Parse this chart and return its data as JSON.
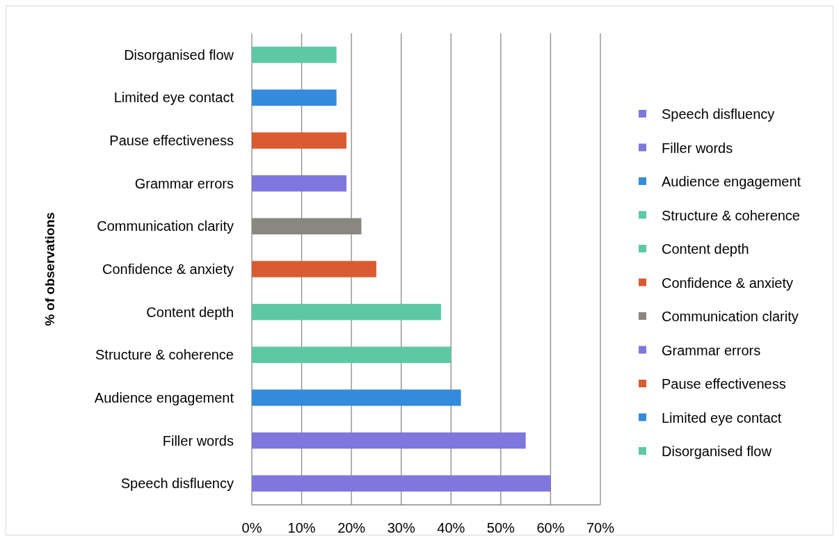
{
  "chart_data": {
    "type": "bar",
    "orientation": "horizontal",
    "ylabel": "% of observations",
    "categories": [
      "Disorganised flow",
      "Limited eye contact",
      "Pause effectiveness",
      "Grammar errors",
      "Communication clarity",
      "Confidence & anxiety",
      "Content depth",
      "Structure & coherence",
      "Audience engagement",
      "Filler words",
      "Speech disfluency"
    ],
    "series": [
      {
        "name": "Speech disfluency",
        "color": "#7f77dd",
        "values": [
          null,
          null,
          null,
          null,
          null,
          null,
          null,
          null,
          null,
          null,
          60
        ]
      },
      {
        "name": "Filler words",
        "color": "#7f77dd",
        "values": [
          null,
          null,
          null,
          null,
          null,
          null,
          null,
          null,
          null,
          55,
          null
        ]
      },
      {
        "name": "Audience engagement",
        "color": "#358bdb",
        "values": [
          null,
          null,
          null,
          null,
          null,
          null,
          null,
          null,
          42,
          null,
          null
        ]
      },
      {
        "name": "Structure & coherence",
        "color": "#5cc9a4",
        "values": [
          null,
          null,
          null,
          null,
          null,
          null,
          null,
          40,
          null,
          null,
          null
        ]
      },
      {
        "name": "Content depth",
        "color": "#5cc9a4",
        "values": [
          null,
          null,
          null,
          null,
          null,
          null,
          38,
          null,
          null,
          null,
          null
        ]
      },
      {
        "name": "Confidence & anxiety",
        "color": "#d95b31",
        "values": [
          null,
          null,
          null,
          null,
          null,
          25,
          null,
          null,
          null,
          null,
          null
        ]
      },
      {
        "name": "Communication clarity",
        "color": "#888780",
        "values": [
          null,
          null,
          null,
          null,
          22,
          null,
          null,
          null,
          null,
          null,
          null
        ]
      },
      {
        "name": "Grammar errors",
        "color": "#7f77dd",
        "values": [
          null,
          null,
          null,
          19,
          null,
          null,
          null,
          null,
          null,
          null,
          null
        ]
      },
      {
        "name": "Pause effectiveness",
        "color": "#d95b31",
        "values": [
          null,
          null,
          19,
          null,
          null,
          null,
          null,
          null,
          null,
          null,
          null
        ]
      },
      {
        "name": "Limited eye contact",
        "color": "#358bdb",
        "values": [
          null,
          17,
          null,
          null,
          null,
          null,
          null,
          null,
          null,
          null,
          null
        ]
      },
      {
        "name": "Disorganised flow",
        "color": "#5cc9a4",
        "values": [
          17,
          null,
          null,
          null,
          null,
          null,
          null,
          null,
          null,
          null,
          null
        ]
      }
    ],
    "xlim": [
      0,
      70
    ],
    "xticks": [
      {
        "value": 0,
        "label": "0%"
      },
      {
        "value": 10,
        "label": "10%"
      },
      {
        "value": 20,
        "label": "20%"
      },
      {
        "value": 30,
        "label": "30%"
      },
      {
        "value": 40,
        "label": "40%"
      },
      {
        "value": 50,
        "label": "50%"
      },
      {
        "value": 60,
        "label": "60%"
      },
      {
        "value": 70,
        "label": "70%"
      }
    ],
    "grid": "x",
    "legend": "right"
  }
}
